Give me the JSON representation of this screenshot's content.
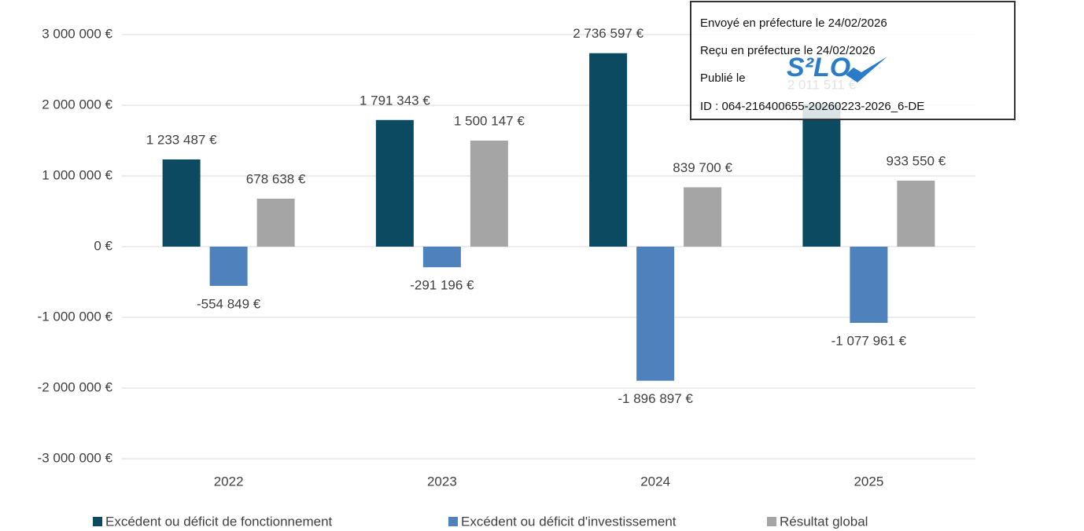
{
  "chart_data": {
    "type": "bar",
    "categories": [
      "2022",
      "2023",
      "2024",
      "2025"
    ],
    "series": [
      {
        "name": "Excédent ou déficit de fonctionnement",
        "color": "#0b4a60",
        "values": [
          1233487,
          1791343,
          2736597,
          2011511
        ],
        "value_labels": [
          "1 233 487 €",
          "1 791 343 €",
          "2 736 597 €",
          "2 011 511 €"
        ]
      },
      {
        "name": "Excédent ou déficit d'investissement",
        "color": "#4f81bd",
        "values": [
          -554849,
          -291196,
          -1896897,
          -1077961
        ],
        "value_labels": [
          "-554 849 €",
          "-291 196 €",
          "-1 896 897 €",
          "-1 077 961 €"
        ]
      },
      {
        "name": "Résultat global",
        "color": "#a5a5a5",
        "values": [
          678638,
          1500147,
          839700,
          933550
        ],
        "value_labels": [
          "678 638 €",
          "1 500 147 €",
          "839 700 €",
          "933 550 €"
        ]
      }
    ],
    "ylim": [
      -3000000,
      3000000
    ],
    "yticks": [
      {
        "value": -3000000,
        "label": "-3 000 000 €"
      },
      {
        "value": -2000000,
        "label": "-2 000 000 €"
      },
      {
        "value": -1000000,
        "label": "-1 000 000 €"
      },
      {
        "value": 0,
        "label": "0 €"
      },
      {
        "value": 1000000,
        "label": "1 000 000 €"
      },
      {
        "value": 2000000,
        "label": "2 000 000 €"
      },
      {
        "value": 3000000,
        "label": "3 000 000 €"
      }
    ],
    "grid": true,
    "legend": "bottom"
  },
  "stamp": {
    "lines": [
      "Envoyé en préfecture le 24/02/2026",
      "Reçu en préfecture le 24/02/2026",
      "Publié le",
      "ID : 064-216400655-20260223-2026_6-DE"
    ],
    "logo": "S²LO"
  }
}
